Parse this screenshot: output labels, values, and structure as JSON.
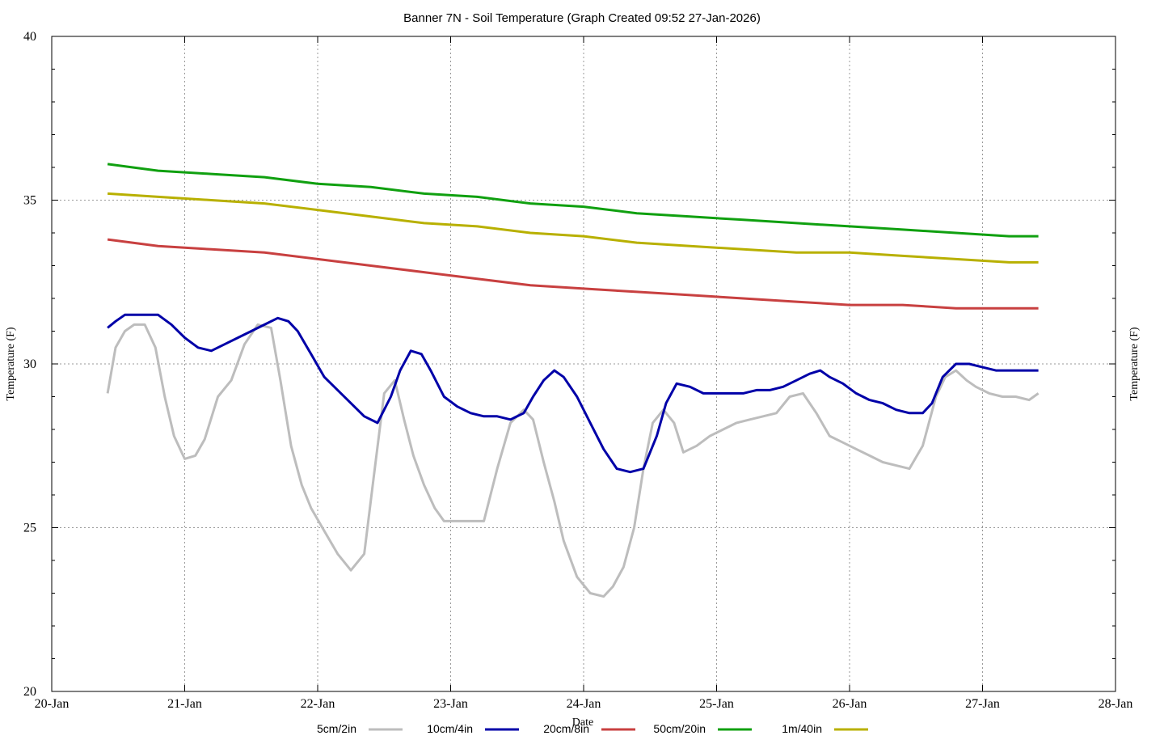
{
  "chart_data": {
    "type": "line",
    "title": "Banner 7N - Soil Temperature (Graph Created 09:52 27-Jan-2026)",
    "xlabel": "Date",
    "ylabel": "Temperature (F)",
    "ylabel_right": "Temperature (F)",
    "xlim": [
      0,
      8
    ],
    "ylim": [
      20,
      40
    ],
    "x_ticks": [
      {
        "v": 0,
        "label": "20-Jan"
      },
      {
        "v": 1,
        "label": "21-Jan"
      },
      {
        "v": 2,
        "label": "22-Jan"
      },
      {
        "v": 3,
        "label": "23-Jan"
      },
      {
        "v": 4,
        "label": "24-Jan"
      },
      {
        "v": 5,
        "label": "25-Jan"
      },
      {
        "v": 6,
        "label": "26-Jan"
      },
      {
        "v": 7,
        "label": "27-Jan"
      },
      {
        "v": 8,
        "label": "28-Jan"
      }
    ],
    "y_ticks": [
      20,
      25,
      30,
      35,
      40
    ],
    "grid": true,
    "legend_position": "bottom",
    "series": [
      {
        "name": "5cm/2in",
        "color": "#bdbdbd",
        "x": [
          0.42,
          0.48,
          0.55,
          0.62,
          0.7,
          0.78,
          0.85,
          0.92,
          1.0,
          1.08,
          1.15,
          1.25,
          1.35,
          1.45,
          1.55,
          1.65,
          1.72,
          1.8,
          1.88,
          1.95,
          2.05,
          2.15,
          2.25,
          2.35,
          2.42,
          2.5,
          2.58,
          2.65,
          2.72,
          2.8,
          2.88,
          2.95,
          3.05,
          3.15,
          3.25,
          3.35,
          3.45,
          3.55,
          3.62,
          3.7,
          3.78,
          3.85,
          3.95,
          4.05,
          4.15,
          4.22,
          4.3,
          4.38,
          4.45,
          4.52,
          4.6,
          4.68,
          4.75,
          4.85,
          4.95,
          5.05,
          5.15,
          5.25,
          5.35,
          5.45,
          5.55,
          5.65,
          5.75,
          5.85,
          5.95,
          6.05,
          6.15,
          6.25,
          6.35,
          6.45,
          6.55,
          6.65,
          6.72,
          6.8,
          6.88,
          6.95,
          7.05,
          7.15,
          7.25,
          7.35,
          7.42
        ],
        "y": [
          29.1,
          30.5,
          31.0,
          31.2,
          31.2,
          30.5,
          29.0,
          27.8,
          27.1,
          27.2,
          27.7,
          29.0,
          29.5,
          30.6,
          31.2,
          31.1,
          29.5,
          27.5,
          26.3,
          25.6,
          24.9,
          24.2,
          23.7,
          24.2,
          26.5,
          29.1,
          29.5,
          28.3,
          27.2,
          26.3,
          25.6,
          25.2,
          25.2,
          25.2,
          25.2,
          26.8,
          28.2,
          28.6,
          28.3,
          27.0,
          25.8,
          24.6,
          23.5,
          23.0,
          22.9,
          23.2,
          23.8,
          25.0,
          26.8,
          28.2,
          28.6,
          28.2,
          27.3,
          27.5,
          27.8,
          28.0,
          28.2,
          28.3,
          28.4,
          28.5,
          29.0,
          29.1,
          28.5,
          27.8,
          27.6,
          27.4,
          27.2,
          27.0,
          26.9,
          26.8,
          27.5,
          29.0,
          29.6,
          29.8,
          29.5,
          29.3,
          29.1,
          29.0,
          29.0,
          28.9,
          29.1
        ]
      },
      {
        "name": "10cm/4in",
        "color": "#0000a8",
        "x": [
          0.42,
          0.48,
          0.55,
          0.62,
          0.7,
          0.8,
          0.9,
          1.0,
          1.1,
          1.2,
          1.3,
          1.4,
          1.5,
          1.6,
          1.7,
          1.78,
          1.85,
          1.95,
          2.05,
          2.15,
          2.25,
          2.35,
          2.45,
          2.55,
          2.62,
          2.7,
          2.78,
          2.85,
          2.95,
          3.05,
          3.15,
          3.25,
          3.35,
          3.45,
          3.55,
          3.62,
          3.7,
          3.78,
          3.85,
          3.95,
          4.05,
          4.15,
          4.25,
          4.35,
          4.45,
          4.55,
          4.62,
          4.7,
          4.8,
          4.9,
          5.0,
          5.1,
          5.2,
          5.3,
          5.4,
          5.5,
          5.6,
          5.7,
          5.78,
          5.85,
          5.95,
          6.05,
          6.15,
          6.25,
          6.35,
          6.45,
          6.55,
          6.62,
          6.7,
          6.8,
          6.9,
          7.0,
          7.1,
          7.2,
          7.3,
          7.42
        ],
        "y": [
          31.1,
          31.3,
          31.5,
          31.5,
          31.5,
          31.5,
          31.2,
          30.8,
          30.5,
          30.4,
          30.6,
          30.8,
          31.0,
          31.2,
          31.4,
          31.3,
          31.0,
          30.3,
          29.6,
          29.2,
          28.8,
          28.4,
          28.2,
          29.0,
          29.8,
          30.4,
          30.3,
          29.8,
          29.0,
          28.7,
          28.5,
          28.4,
          28.4,
          28.3,
          28.5,
          29.0,
          29.5,
          29.8,
          29.6,
          29.0,
          28.2,
          27.4,
          26.8,
          26.7,
          26.8,
          27.8,
          28.8,
          29.4,
          29.3,
          29.1,
          29.1,
          29.1,
          29.1,
          29.2,
          29.2,
          29.3,
          29.5,
          29.7,
          29.8,
          29.6,
          29.4,
          29.1,
          28.9,
          28.8,
          28.6,
          28.5,
          28.5,
          28.8,
          29.6,
          30.0,
          30.0,
          29.9,
          29.8,
          29.8,
          29.8,
          29.8
        ]
      },
      {
        "name": "20cm/8in",
        "color": "#c84040",
        "x": [
          0.42,
          0.8,
          1.2,
          1.6,
          2.0,
          2.4,
          2.8,
          3.2,
          3.6,
          4.0,
          4.4,
          4.8,
          5.2,
          5.6,
          6.0,
          6.4,
          6.8,
          7.2,
          7.42
        ],
        "y": [
          33.8,
          33.6,
          33.5,
          33.4,
          33.2,
          33.0,
          32.8,
          32.6,
          32.4,
          32.3,
          32.2,
          32.1,
          32.0,
          31.9,
          31.8,
          31.8,
          31.7,
          31.7,
          31.7
        ]
      },
      {
        "name": "50cm/20in",
        "color": "#10a010",
        "x": [
          0.42,
          0.8,
          1.2,
          1.6,
          2.0,
          2.4,
          2.8,
          3.2,
          3.6,
          4.0,
          4.4,
          4.8,
          5.2,
          5.6,
          6.0,
          6.4,
          6.8,
          7.2,
          7.42
        ],
        "y": [
          36.1,
          35.9,
          35.8,
          35.7,
          35.5,
          35.4,
          35.2,
          35.1,
          34.9,
          34.8,
          34.6,
          34.5,
          34.4,
          34.3,
          34.2,
          34.1,
          34.0,
          33.9,
          33.9
        ]
      },
      {
        "name": "1m/40in",
        "color": "#b8b000",
        "x": [
          0.42,
          0.8,
          1.2,
          1.6,
          2.0,
          2.4,
          2.8,
          3.2,
          3.6,
          4.0,
          4.4,
          4.8,
          5.2,
          5.6,
          6.0,
          6.4,
          6.8,
          7.2,
          7.42
        ],
        "y": [
          35.2,
          35.1,
          35.0,
          34.9,
          34.7,
          34.5,
          34.3,
          34.2,
          34.0,
          33.9,
          33.7,
          33.6,
          33.5,
          33.4,
          33.4,
          33.3,
          33.2,
          33.1,
          33.1
        ]
      }
    ]
  }
}
